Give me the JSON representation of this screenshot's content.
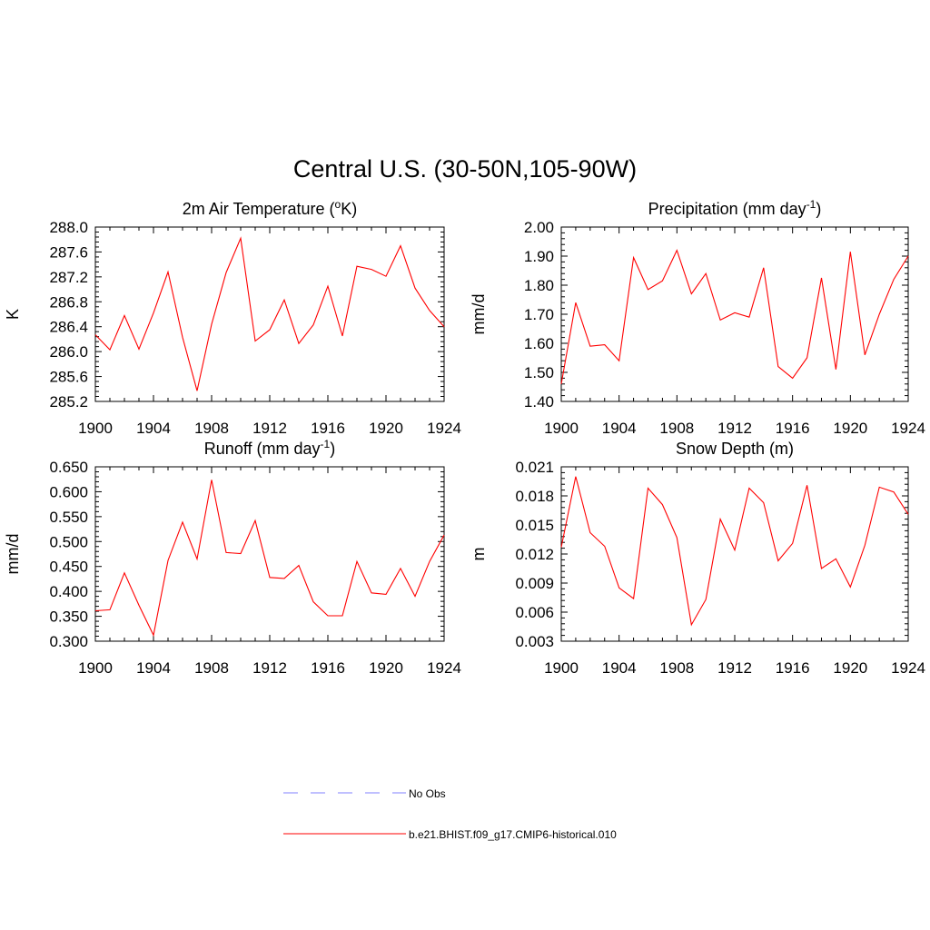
{
  "title": "Central U.S. (30-50N,105-90W)",
  "colors": {
    "model": "#ff0000",
    "obs": "#8080ff",
    "axis": "#000000"
  },
  "legend": [
    {
      "label": "No Obs",
      "style": "dashed",
      "color": "#8080ff"
    },
    {
      "label": "b.e21.BHIST.f09_g17.CMIP6-historical.010",
      "style": "solid",
      "color": "#ff0000"
    }
  ],
  "chart_data": [
    {
      "type": "line",
      "title": "2m Air Temperature (°K)",
      "title_parts": {
        "main": "2m Air Temperature (",
        "sup": "o",
        "post": "K)"
      },
      "ylabel": "K",
      "xlim": [
        1900,
        1924
      ],
      "ylim": [
        285.2,
        288.0
      ],
      "xticks": [
        "1900",
        "1904",
        "1908",
        "1912",
        "1916",
        "1920",
        "1924"
      ],
      "yticks": [
        "285.2",
        "285.6",
        "286.0",
        "286.4",
        "286.8",
        "287.2",
        "287.6",
        "288.0"
      ],
      "x": [
        1900,
        1901,
        1902,
        1903,
        1904,
        1905,
        1906,
        1907,
        1908,
        1909,
        1910,
        1911,
        1912,
        1913,
        1914,
        1915,
        1916,
        1917,
        1918,
        1919,
        1920,
        1921,
        1922,
        1923,
        1924
      ],
      "series": [
        {
          "name": "b.e21.BHIST.f09_g17.CMIP6-historical.010",
          "values": [
            286.27,
            286.03,
            286.58,
            286.04,
            286.62,
            287.28,
            286.23,
            285.37,
            286.44,
            287.27,
            287.82,
            286.17,
            286.35,
            286.83,
            286.13,
            286.43,
            287.05,
            286.25,
            287.37,
            287.32,
            287.21,
            287.7,
            287.02,
            286.66,
            286.4
          ]
        }
      ]
    },
    {
      "type": "line",
      "title": "Precipitation (mm day-1)",
      "title_parts": {
        "main": "Precipitation (mm day",
        "sup": "-1",
        "post": ")"
      },
      "ylabel": "mm/d",
      "xlim": [
        1900,
        1924
      ],
      "ylim": [
        1.4,
        2.0
      ],
      "xticks": [
        "1900",
        "1904",
        "1908",
        "1912",
        "1916",
        "1920",
        "1924"
      ],
      "yticks": [
        "1.40",
        "1.50",
        "1.60",
        "1.70",
        "1.80",
        "1.90",
        "2.00"
      ],
      "x": [
        1900,
        1901,
        1902,
        1903,
        1904,
        1905,
        1906,
        1907,
        1908,
        1909,
        1910,
        1911,
        1912,
        1913,
        1914,
        1915,
        1916,
        1917,
        1918,
        1919,
        1920,
        1921,
        1922,
        1923,
        1924
      ],
      "series": [
        {
          "name": "b.e21.BHIST.f09_g17.CMIP6-historical.010",
          "values": [
            1.46,
            1.74,
            1.59,
            1.595,
            1.54,
            1.895,
            1.785,
            1.815,
            1.92,
            1.77,
            1.84,
            1.68,
            1.705,
            1.69,
            1.86,
            1.52,
            1.48,
            1.55,
            1.825,
            1.51,
            1.915,
            1.56,
            1.7,
            1.82,
            1.9
          ]
        }
      ]
    },
    {
      "type": "line",
      "title": "Runoff (mm day-1)",
      "title_parts": {
        "main": "Runoff (mm day",
        "sup": "-1",
        "post": ")"
      },
      "ylabel": "mm/d",
      "xlim": [
        1900,
        1924
      ],
      "ylim": [
        0.3,
        0.65
      ],
      "xticks": [
        "1900",
        "1904",
        "1908",
        "1912",
        "1916",
        "1920",
        "1924"
      ],
      "yticks": [
        "0.300",
        "0.350",
        "0.400",
        "0.450",
        "0.500",
        "0.550",
        "0.600",
        "0.650"
      ],
      "x": [
        1900,
        1901,
        1902,
        1903,
        1904,
        1905,
        1906,
        1907,
        1908,
        1909,
        1910,
        1911,
        1912,
        1913,
        1914,
        1915,
        1916,
        1917,
        1918,
        1919,
        1920,
        1921,
        1922,
        1923,
        1924
      ],
      "series": [
        {
          "name": "b.e21.BHIST.f09_g17.CMIP6-historical.010",
          "values": [
            0.361,
            0.363,
            0.437,
            0.372,
            0.312,
            0.462,
            0.539,
            0.465,
            0.624,
            0.478,
            0.476,
            0.542,
            0.428,
            0.426,
            0.452,
            0.379,
            0.351,
            0.351,
            0.46,
            0.397,
            0.394,
            0.446,
            0.39,
            0.46,
            0.513
          ]
        }
      ]
    },
    {
      "type": "line",
      "title": "Snow Depth (m)",
      "title_parts": {
        "main": "Snow Depth (m)",
        "sup": "",
        "post": ""
      },
      "ylabel": "m",
      "xlim": [
        1900,
        1924
      ],
      "ylim": [
        0.003,
        0.021
      ],
      "xticks": [
        "1900",
        "1904",
        "1908",
        "1912",
        "1916",
        "1920",
        "1924"
      ],
      "yticks": [
        "0.003",
        "0.006",
        "0.009",
        "0.012",
        "0.015",
        "0.018",
        "0.021"
      ],
      "x": [
        1900,
        1901,
        1902,
        1903,
        1904,
        1905,
        1906,
        1907,
        1908,
        1909,
        1910,
        1911,
        1912,
        1913,
        1914,
        1915,
        1916,
        1917,
        1918,
        1919,
        1920,
        1921,
        1922,
        1923,
        1924
      ],
      "series": [
        {
          "name": "b.e21.BHIST.f09_g17.CMIP6-historical.010",
          "values": [
            0.0127,
            0.02,
            0.0142,
            0.0128,
            0.0085,
            0.0074,
            0.0188,
            0.0171,
            0.0137,
            0.0047,
            0.0073,
            0.0156,
            0.0124,
            0.0188,
            0.0173,
            0.0113,
            0.0131,
            0.0191,
            0.0105,
            0.0115,
            0.0086,
            0.0129,
            0.0189,
            0.0184,
            0.0161
          ]
        }
      ]
    }
  ]
}
